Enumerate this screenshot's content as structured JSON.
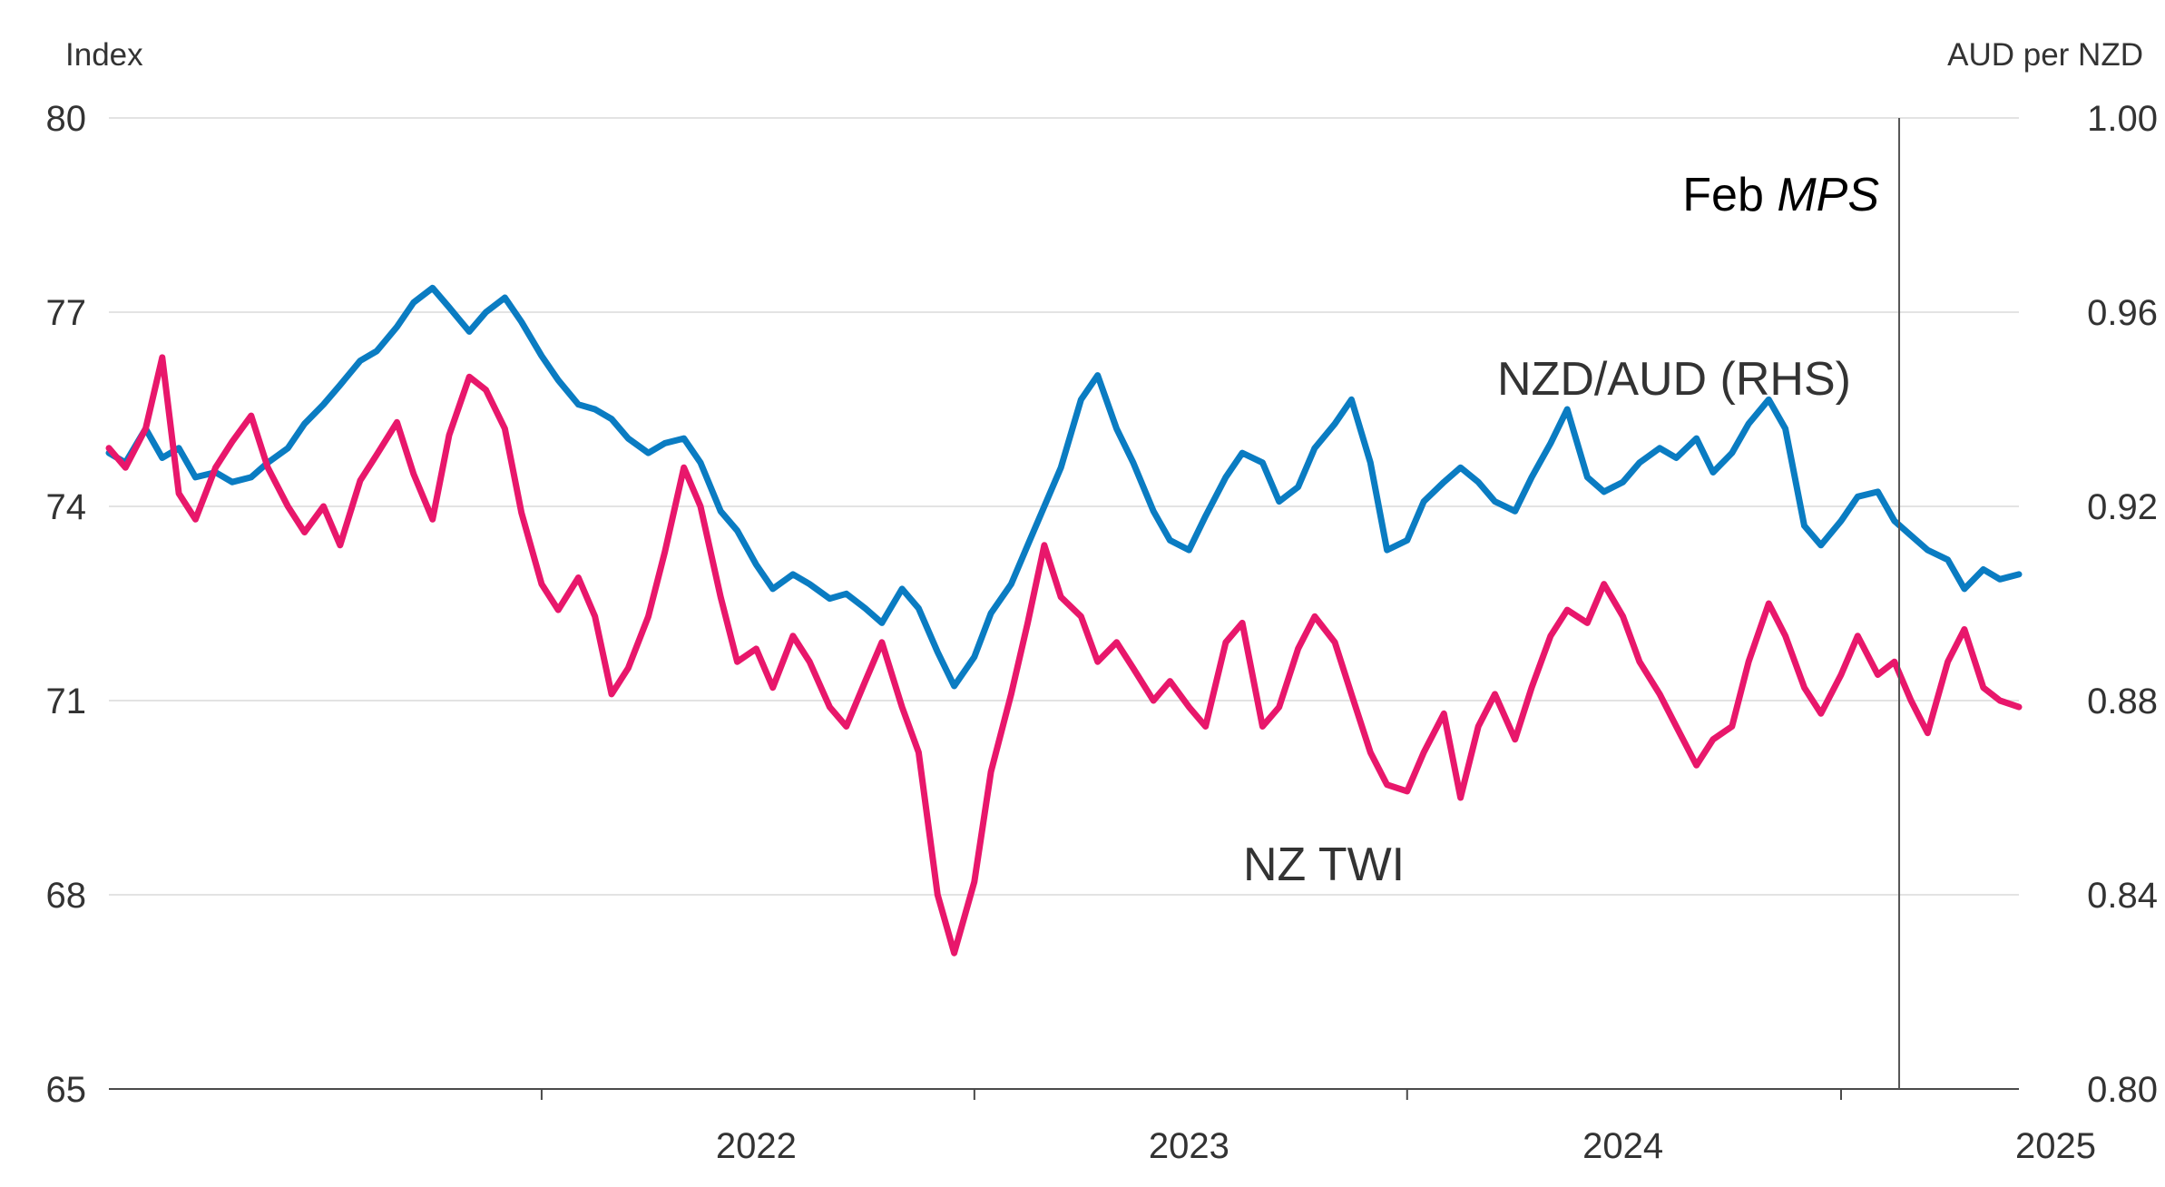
{
  "chart_data": {
    "type": "line",
    "left_axis": {
      "unit_label": "Index",
      "ylim": [
        65,
        80
      ],
      "ticks": [
        "80",
        "77",
        "74",
        "71",
        "68",
        "65"
      ],
      "tick_values": [
        80,
        77,
        74,
        71,
        68,
        65
      ]
    },
    "right_axis": {
      "unit_label": "AUD per NZD",
      "ylim": [
        0.8,
        1.0
      ],
      "ticks": [
        "1.00",
        "0.96",
        "0.92",
        "0.88",
        "0.84",
        "0.80"
      ],
      "tick_values": [
        1.0,
        0.96,
        0.92,
        0.88,
        0.84,
        0.8
      ]
    },
    "x_axis": {
      "labels": [
        "2022",
        "2023",
        "2024",
        "2025"
      ],
      "range": [
        "2021-01-01",
        "2025-05-31"
      ]
    },
    "grid": true,
    "annotation": {
      "prefix": "Feb ",
      "italic": "MPS",
      "date": "2025-02-19"
    },
    "series": [
      {
        "name": "NZD/AUD (RHS)",
        "axis": "right",
        "color": "#0a7cc2",
        "points": [
          [
            "2021-01-01",
            0.931
          ],
          [
            "2021-01-15",
            0.929
          ],
          [
            "2021-02-01",
            0.936
          ],
          [
            "2021-02-15",
            0.93
          ],
          [
            "2021-03-01",
            0.932
          ],
          [
            "2021-03-15",
            0.926
          ],
          [
            "2021-04-01",
            0.927
          ],
          [
            "2021-04-15",
            0.925
          ],
          [
            "2021-05-01",
            0.926
          ],
          [
            "2021-05-15",
            0.929
          ],
          [
            "2021-06-01",
            0.932
          ],
          [
            "2021-06-15",
            0.937
          ],
          [
            "2021-07-01",
            0.941
          ],
          [
            "2021-07-15",
            0.945
          ],
          [
            "2021-08-01",
            0.95
          ],
          [
            "2021-08-15",
            0.952
          ],
          [
            "2021-09-01",
            0.957
          ],
          [
            "2021-09-15",
            0.962
          ],
          [
            "2021-10-01",
            0.965
          ],
          [
            "2021-10-15",
            0.961
          ],
          [
            "2021-11-01",
            0.956
          ],
          [
            "2021-11-15",
            0.96
          ],
          [
            "2021-12-01",
            0.963
          ],
          [
            "2021-12-15",
            0.958
          ],
          [
            "2022-01-01",
            0.951
          ],
          [
            "2022-01-15",
            0.946
          ],
          [
            "2022-02-01",
            0.941
          ],
          [
            "2022-02-15",
            0.94
          ],
          [
            "2022-03-01",
            0.938
          ],
          [
            "2022-03-15",
            0.934
          ],
          [
            "2022-04-01",
            0.931
          ],
          [
            "2022-04-15",
            0.933
          ],
          [
            "2022-05-01",
            0.934
          ],
          [
            "2022-05-15",
            0.929
          ],
          [
            "2022-06-01",
            0.919
          ],
          [
            "2022-06-15",
            0.915
          ],
          [
            "2022-07-01",
            0.908
          ],
          [
            "2022-07-15",
            0.903
          ],
          [
            "2022-08-01",
            0.906
          ],
          [
            "2022-08-15",
            0.904
          ],
          [
            "2022-09-01",
            0.901
          ],
          [
            "2022-09-15",
            0.902
          ],
          [
            "2022-10-01",
            0.899
          ],
          [
            "2022-10-15",
            0.896
          ],
          [
            "2022-11-01",
            0.903
          ],
          [
            "2022-11-15",
            0.899
          ],
          [
            "2022-12-01",
            0.89
          ],
          [
            "2022-12-15",
            0.883
          ],
          [
            "2023-01-01",
            0.889
          ],
          [
            "2023-01-15",
            0.898
          ],
          [
            "2023-02-01",
            0.904
          ],
          [
            "2023-02-15",
            0.912
          ],
          [
            "2023-03-01",
            0.92
          ],
          [
            "2023-03-15",
            0.928
          ],
          [
            "2023-04-01",
            0.942
          ],
          [
            "2023-04-15",
            0.947
          ],
          [
            "2023-05-01",
            0.936
          ],
          [
            "2023-05-15",
            0.929
          ],
          [
            "2023-06-01",
            0.919
          ],
          [
            "2023-06-15",
            0.913
          ],
          [
            "2023-07-01",
            0.911
          ],
          [
            "2023-07-15",
            0.918
          ],
          [
            "2023-08-01",
            0.926
          ],
          [
            "2023-08-15",
            0.931
          ],
          [
            "2023-09-01",
            0.929
          ],
          [
            "2023-09-15",
            0.921
          ],
          [
            "2023-10-01",
            0.924
          ],
          [
            "2023-10-15",
            0.932
          ],
          [
            "2023-11-01",
            0.937
          ],
          [
            "2023-11-15",
            0.942
          ],
          [
            "2023-12-01",
            0.929
          ],
          [
            "2023-12-15",
            0.911
          ],
          [
            "2024-01-01",
            0.913
          ],
          [
            "2024-01-15",
            0.921
          ],
          [
            "2024-02-01",
            0.925
          ],
          [
            "2024-02-15",
            0.928
          ],
          [
            "2024-03-01",
            0.925
          ],
          [
            "2024-03-15",
            0.921
          ],
          [
            "2024-04-01",
            0.919
          ],
          [
            "2024-04-15",
            0.926
          ],
          [
            "2024-05-01",
            0.933
          ],
          [
            "2024-05-15",
            0.94
          ],
          [
            "2024-06-01",
            0.926
          ],
          [
            "2024-06-15",
            0.923
          ],
          [
            "2024-07-01",
            0.925
          ],
          [
            "2024-07-15",
            0.929
          ],
          [
            "2024-08-01",
            0.932
          ],
          [
            "2024-08-15",
            0.93
          ],
          [
            "2024-09-01",
            0.934
          ],
          [
            "2024-09-15",
            0.927
          ],
          [
            "2024-10-01",
            0.931
          ],
          [
            "2024-10-15",
            0.937
          ],
          [
            "2024-11-01",
            0.942
          ],
          [
            "2024-11-15",
            0.936
          ],
          [
            "2024-12-01",
            0.916
          ],
          [
            "2024-12-15",
            0.912
          ],
          [
            "2025-01-01",
            0.917
          ],
          [
            "2025-01-15",
            0.922
          ],
          [
            "2025-02-01",
            0.923
          ],
          [
            "2025-02-15",
            0.917
          ],
          [
            "2025-03-01",
            0.914
          ],
          [
            "2025-03-15",
            0.911
          ],
          [
            "2025-04-01",
            0.909
          ],
          [
            "2025-04-15",
            0.903
          ],
          [
            "2025-05-01",
            0.907
          ],
          [
            "2025-05-15",
            0.905
          ],
          [
            "2025-05-31",
            0.906
          ]
        ]
      },
      {
        "name": "NZ TWI",
        "axis": "left",
        "color": "#e8176b",
        "points": [
          [
            "2021-01-01",
            74.9
          ],
          [
            "2021-01-15",
            74.6
          ],
          [
            "2021-02-01",
            75.2
          ],
          [
            "2021-02-15",
            76.3
          ],
          [
            "2021-03-01",
            74.2
          ],
          [
            "2021-03-15",
            73.8
          ],
          [
            "2021-04-01",
            74.6
          ],
          [
            "2021-04-15",
            75.0
          ],
          [
            "2021-05-01",
            75.4
          ],
          [
            "2021-05-15",
            74.6
          ],
          [
            "2021-06-01",
            74.0
          ],
          [
            "2021-06-15",
            73.6
          ],
          [
            "2021-07-01",
            74.0
          ],
          [
            "2021-07-15",
            73.4
          ],
          [
            "2021-08-01",
            74.4
          ],
          [
            "2021-08-15",
            74.8
          ],
          [
            "2021-09-01",
            75.3
          ],
          [
            "2021-09-15",
            74.5
          ],
          [
            "2021-10-01",
            73.8
          ],
          [
            "2021-10-15",
            75.1
          ],
          [
            "2021-11-01",
            76.0
          ],
          [
            "2021-11-15",
            75.8
          ],
          [
            "2021-12-01",
            75.2
          ],
          [
            "2021-12-15",
            73.9
          ],
          [
            "2022-01-01",
            72.8
          ],
          [
            "2022-01-15",
            72.4
          ],
          [
            "2022-02-01",
            72.9
          ],
          [
            "2022-02-15",
            72.3
          ],
          [
            "2022-03-01",
            71.1
          ],
          [
            "2022-03-15",
            71.5
          ],
          [
            "2022-04-01",
            72.3
          ],
          [
            "2022-04-15",
            73.3
          ],
          [
            "2022-05-01",
            74.6
          ],
          [
            "2022-05-15",
            74.0
          ],
          [
            "2022-06-01",
            72.6
          ],
          [
            "2022-06-15",
            71.6
          ],
          [
            "2022-07-01",
            71.8
          ],
          [
            "2022-07-15",
            71.2
          ],
          [
            "2022-08-01",
            72.0
          ],
          [
            "2022-08-15",
            71.6
          ],
          [
            "2022-09-01",
            70.9
          ],
          [
            "2022-09-15",
            70.6
          ],
          [
            "2022-10-01",
            71.3
          ],
          [
            "2022-10-15",
            71.9
          ],
          [
            "2022-11-01",
            70.9
          ],
          [
            "2022-11-15",
            70.2
          ],
          [
            "2022-12-01",
            68.0
          ],
          [
            "2022-12-15",
            67.1
          ],
          [
            "2023-01-01",
            68.2
          ],
          [
            "2023-01-15",
            69.9
          ],
          [
            "2023-02-01",
            71.1
          ],
          [
            "2023-02-15",
            72.2
          ],
          [
            "2023-03-01",
            73.4
          ],
          [
            "2023-03-15",
            72.6
          ],
          [
            "2023-04-01",
            72.3
          ],
          [
            "2023-04-15",
            71.6
          ],
          [
            "2023-05-01",
            71.9
          ],
          [
            "2023-05-15",
            71.5
          ],
          [
            "2023-06-01",
            71.0
          ],
          [
            "2023-06-15",
            71.3
          ],
          [
            "2023-07-01",
            70.9
          ],
          [
            "2023-07-15",
            70.6
          ],
          [
            "2023-08-01",
            71.9
          ],
          [
            "2023-08-15",
            72.2
          ],
          [
            "2023-09-01",
            70.6
          ],
          [
            "2023-09-15",
            70.9
          ],
          [
            "2023-10-01",
            71.8
          ],
          [
            "2023-10-15",
            72.3
          ],
          [
            "2023-11-01",
            71.9
          ],
          [
            "2023-11-15",
            71.1
          ],
          [
            "2023-12-01",
            70.2
          ],
          [
            "2023-12-15",
            69.7
          ],
          [
            "2024-01-01",
            69.6
          ],
          [
            "2024-01-15",
            70.2
          ],
          [
            "2024-02-01",
            70.8
          ],
          [
            "2024-02-15",
            69.5
          ],
          [
            "2024-03-01",
            70.6
          ],
          [
            "2024-03-15",
            71.1
          ],
          [
            "2024-04-01",
            70.4
          ],
          [
            "2024-04-15",
            71.2
          ],
          [
            "2024-05-01",
            72.0
          ],
          [
            "2024-05-15",
            72.4
          ],
          [
            "2024-06-01",
            72.2
          ],
          [
            "2024-06-15",
            72.8
          ],
          [
            "2024-07-01",
            72.3
          ],
          [
            "2024-07-15",
            71.6
          ],
          [
            "2024-08-01",
            71.1
          ],
          [
            "2024-08-15",
            70.6
          ],
          [
            "2024-09-01",
            70.0
          ],
          [
            "2024-09-15",
            70.4
          ],
          [
            "2024-10-01",
            70.6
          ],
          [
            "2024-10-15",
            71.6
          ],
          [
            "2024-11-01",
            72.5
          ],
          [
            "2024-11-15",
            72.0
          ],
          [
            "2024-12-01",
            71.2
          ],
          [
            "2024-12-15",
            70.8
          ],
          [
            "2025-01-01",
            71.4
          ],
          [
            "2025-01-15",
            72.0
          ],
          [
            "2025-02-01",
            71.4
          ],
          [
            "2025-02-15",
            71.6
          ],
          [
            "2025-03-01",
            71.0
          ],
          [
            "2025-03-15",
            70.5
          ],
          [
            "2025-04-01",
            71.6
          ],
          [
            "2025-04-15",
            72.1
          ],
          [
            "2025-05-01",
            71.2
          ],
          [
            "2025-05-15",
            71.0
          ],
          [
            "2025-05-31",
            70.9
          ]
        ]
      }
    ]
  }
}
